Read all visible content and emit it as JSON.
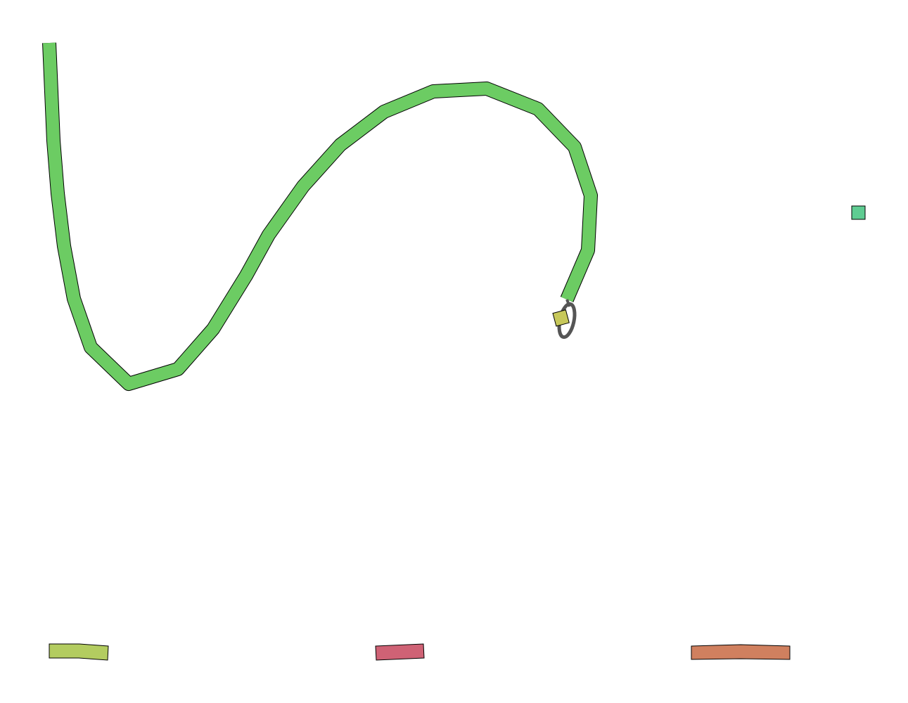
{
  "canvas": {
    "background": "#ffffff"
  },
  "colors": {
    "main_contig": "#6ccc63",
    "contig_small_yellow": "#c7c85a",
    "contig_small_teal": "#5fcc92",
    "contig_bottom_left": "#b3cc60",
    "contig_bottom_center": "#cf6275",
    "contig_bottom_right": "#d0805f",
    "outline": "#000000",
    "loop_edge": "#555555"
  },
  "segments": [
    {
      "id": "long-winding-contig",
      "color_key": "main_contig"
    },
    {
      "id": "small-contig-with-loop",
      "color_key": "contig_small_yellow",
      "has_self_loop": true
    },
    {
      "id": "isolated-small-contig",
      "color_key": "contig_small_teal"
    },
    {
      "id": "bottom-left-contig",
      "color_key": "contig_bottom_left"
    },
    {
      "id": "bottom-center-contig",
      "color_key": "contig_bottom_center"
    },
    {
      "id": "bottom-right-contig",
      "color_key": "contig_bottom_right"
    }
  ]
}
